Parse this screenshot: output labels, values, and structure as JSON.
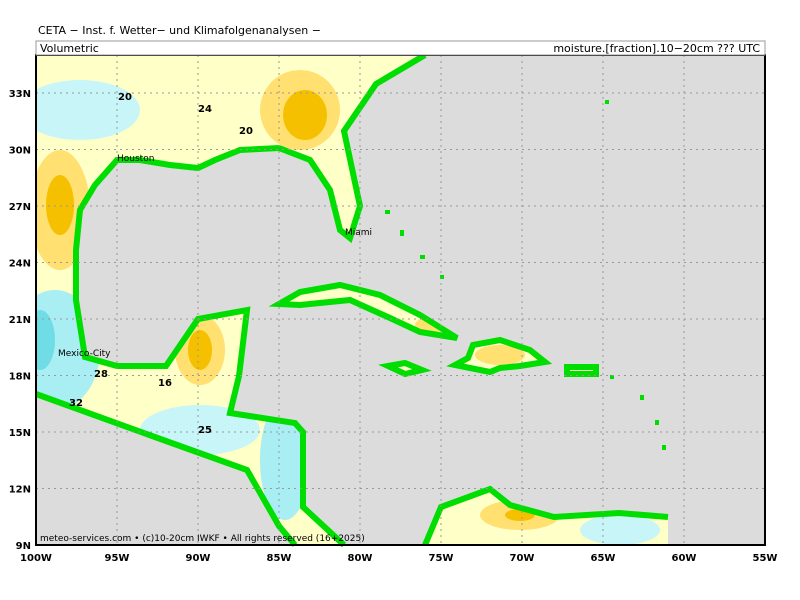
{
  "header": {
    "title": "CETA − Inst. f. Wetter− und Klimafolgenanalysen −",
    "left": "Volumetric",
    "right": "moisture.[fraction].10−20cm ??? UTC"
  },
  "lat_labels": [
    "33N",
    "30N",
    "27N",
    "24N",
    "21N",
    "18N",
    "15N",
    "12N",
    "9N"
  ],
  "lon_labels": [
    "100W",
    "95W",
    "90W",
    "85W",
    "80W",
    "75W",
    "70W",
    "65W",
    "60W",
    "55W"
  ],
  "places": [
    "Houston",
    "Miami",
    "Mexico-City"
  ],
  "contour_labels": [
    "20",
    "24",
    "20",
    "28",
    "16",
    "32",
    "25"
  ],
  "footer": "meteo-services.com • (c)10-20cm IWKF • All rights reserved (16+2025)"
}
